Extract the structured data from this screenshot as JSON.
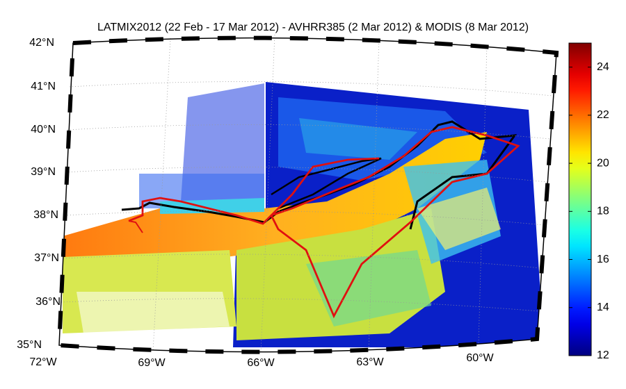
{
  "title": "LATMIX2012 (22 Feb - 17 Mar 2012) - AVHRR385 (2 Mar 2012) & MODIS (8 Mar 2012)",
  "map": {
    "lat_labels": [
      "42°N",
      "41°N",
      "40°N",
      "39°N",
      "38°N",
      "37°N",
      "36°N",
      "35°N"
    ],
    "lon_labels": [
      "72°W",
      "69°W",
      "66°W",
      "63°W",
      "60°W"
    ]
  },
  "colorbar": {
    "range": [
      12,
      25
    ],
    "ticks": [
      12,
      14,
      16,
      18,
      20,
      22,
      24
    ]
  }
}
